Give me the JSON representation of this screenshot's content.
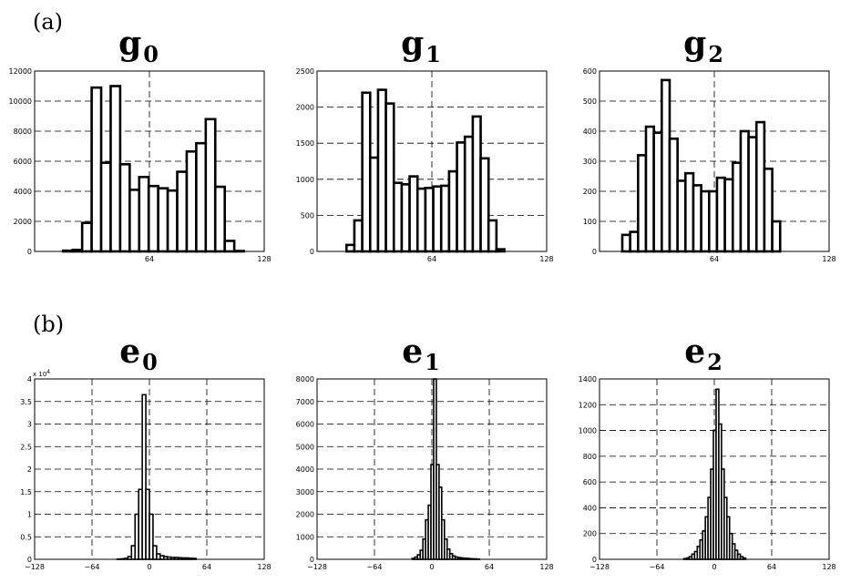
{
  "panel_labels": [
    "(a)",
    "(b)"
  ],
  "chart_data": [
    {
      "type": "bar",
      "row": 0,
      "col": 0,
      "title_main": "g",
      "title_sub": "0",
      "xlim": [
        0,
        128
      ],
      "ylim": [
        0,
        12000
      ],
      "xticks": [
        64,
        128
      ],
      "xtick_labels": [
        "64",
        "128"
      ],
      "yticks": [
        0,
        2000,
        4000,
        6000,
        8000,
        10000,
        12000
      ],
      "ytick_labels": [
        "0",
        "2000",
        "4000",
        "6000",
        "8000",
        "10000",
        "12000"
      ],
      "multiplier": "",
      "grid": true,
      "bin_start": 0,
      "bin_width": 5.3,
      "values": [
        0,
        0,
        0,
        50,
        100,
        1900,
        10900,
        5900,
        11000,
        5800,
        4100,
        4950,
        4350,
        4200,
        4050,
        5300,
        6650,
        7200,
        8800,
        4300,
        700,
        30
      ]
    },
    {
      "type": "bar",
      "row": 0,
      "col": 1,
      "title_main": "g",
      "title_sub": "1",
      "xlim": [
        0,
        128
      ],
      "ylim": [
        0,
        2500
      ],
      "xticks": [
        64,
        128
      ],
      "xtick_labels": [
        "64",
        "128"
      ],
      "yticks": [
        0,
        500,
        1000,
        1500,
        2000,
        2500
      ],
      "ytick_labels": [
        "0",
        "500",
        "1000",
        "1500",
        "2000",
        "2500"
      ],
      "multiplier": "",
      "grid": true,
      "bin_start": 16.4,
      "bin_width": 4.4,
      "values": [
        90,
        430,
        2200,
        1300,
        2240,
        2050,
        950,
        930,
        1040,
        870,
        880,
        900,
        910,
        1110,
        1510,
        1590,
        1870,
        1290,
        430,
        30
      ]
    },
    {
      "type": "bar",
      "row": 0,
      "col": 2,
      "title_main": "g",
      "title_sub": "2",
      "xlim": [
        0,
        128
      ],
      "ylim": [
        0,
        600
      ],
      "xticks": [
        64,
        128
      ],
      "xtick_labels": [
        "64",
        "128"
      ],
      "yticks": [
        0,
        100,
        200,
        300,
        400,
        500,
        600
      ],
      "ytick_labels": [
        "0",
        "100",
        "200",
        "300",
        "400",
        "500",
        "600"
      ],
      "multiplier": "",
      "grid": true,
      "bin_start": 12.7,
      "bin_width": 4.4,
      "values": [
        55,
        65,
        320,
        415,
        395,
        570,
        375,
        235,
        260,
        220,
        200,
        200,
        245,
        240,
        295,
        400,
        380,
        430,
        275,
        100
      ]
    },
    {
      "type": "bar",
      "row": 1,
      "col": 0,
      "title_main": "e",
      "title_sub": "0",
      "xlim": [
        -128,
        128
      ],
      "ylim": [
        0,
        40000
      ],
      "xticks": [
        -128,
        -64,
        0,
        64,
        128
      ],
      "xtick_labels": [
        "−128",
        "−64",
        "0",
        "64",
        "128"
      ],
      "yticks": [
        0,
        5000,
        10000,
        15000,
        20000,
        25000,
        30000,
        35000,
        40000
      ],
      "ytick_labels": [
        "0",
        "0.5",
        "1",
        "1.5",
        "2",
        "2.5",
        "3",
        "3.5",
        "4"
      ],
      "multiplier": "x 10",
      "multiplier_exp": "4",
      "grid": true,
      "bin_start": -36,
      "bin_width": 4,
      "values": [
        50,
        100,
        200,
        600,
        3000,
        10000,
        15500,
        36500,
        15500,
        10000,
        3000,
        1200,
        800,
        600,
        500,
        400,
        400,
        350,
        300,
        300,
        250,
        200
      ]
    },
    {
      "type": "bar",
      "row": 1,
      "col": 1,
      "title_main": "e",
      "title_sub": "1",
      "xlim": [
        -128,
        128
      ],
      "ylim": [
        0,
        8000
      ],
      "xticks": [
        -128,
        -64,
        0,
        64,
        128
      ],
      "xtick_labels": [
        "−128",
        "−64",
        "0",
        "64",
        "128"
      ],
      "yticks": [
        0,
        1000,
        2000,
        3000,
        4000,
        5000,
        6000,
        7000,
        8000
      ],
      "ytick_labels": [
        "0",
        "1000",
        "2000",
        "3000",
        "4000",
        "5000",
        "6000",
        "7000",
        "8000"
      ],
      "multiplier": "",
      "multiplier_exp": "",
      "grid": true,
      "bin_start": -22,
      "bin_width": 3,
      "values": [
        40,
        100,
        200,
        400,
        900,
        1750,
        2400,
        4200,
        8000,
        4200,
        3200,
        1750,
        900,
        450,
        250,
        150,
        100,
        80,
        60,
        50,
        40,
        30,
        20,
        20,
        10
      ]
    },
    {
      "type": "bar",
      "row": 1,
      "col": 2,
      "title_main": "e",
      "title_sub": "2",
      "xlim": [
        -128,
        128
      ],
      "ylim": [
        0,
        1400
      ],
      "xticks": [
        -128,
        -64,
        0,
        64,
        128
      ],
      "xtick_labels": [
        "−128",
        "−64",
        "0",
        "64",
        "128"
      ],
      "yticks": [
        0,
        200,
        400,
        600,
        800,
        1000,
        1200,
        1400
      ],
      "ytick_labels": [
        "0",
        "200",
        "400",
        "600",
        "800",
        "1000",
        "1200",
        "1400"
      ],
      "multiplier": "",
      "multiplier_exp": "",
      "grid": true,
      "bin_start": -34,
      "bin_width": 3,
      "values": [
        5,
        10,
        20,
        40,
        60,
        100,
        150,
        220,
        330,
        480,
        700,
        1000,
        1320,
        1050,
        700,
        480,
        330,
        200,
        120,
        70,
        40,
        20,
        10
      ]
    }
  ]
}
